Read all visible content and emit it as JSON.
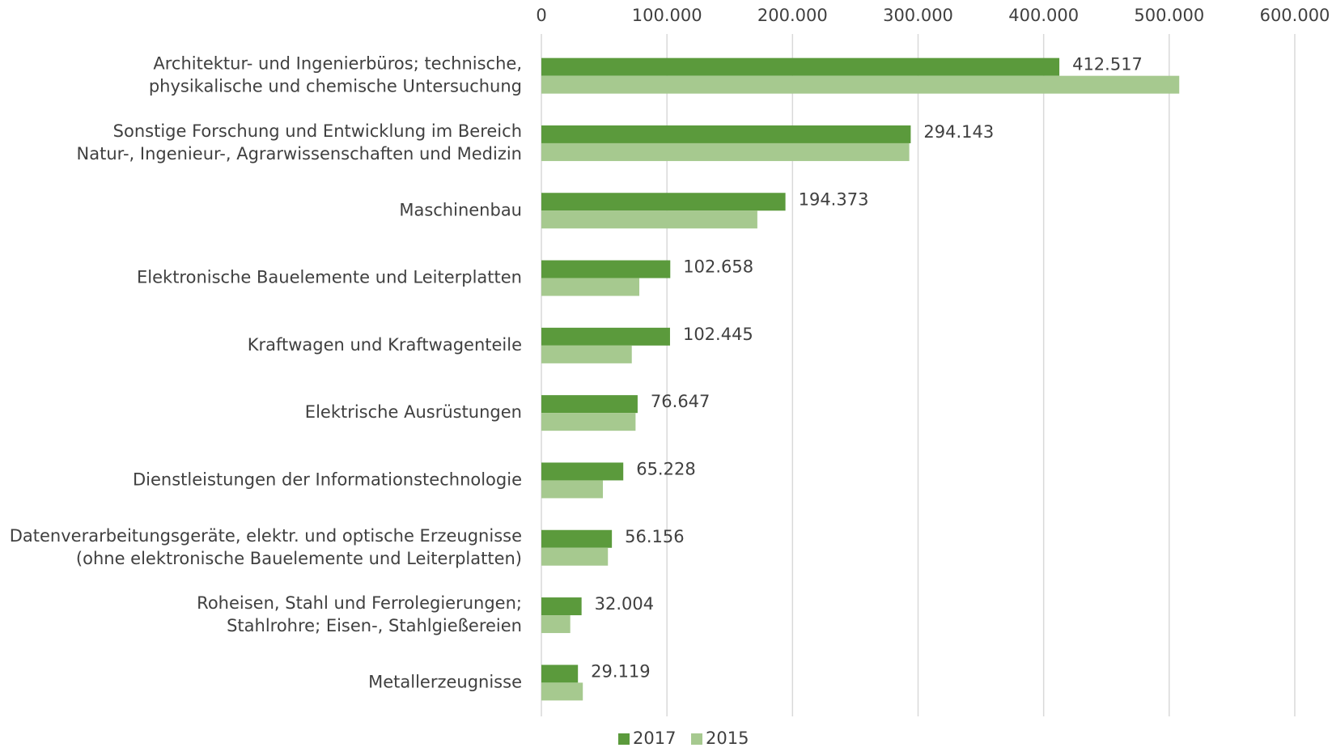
{
  "chart_data": {
    "type": "bar",
    "orientation": "horizontal",
    "categories": [
      "Architektur- und Ingenierbüros; technische,\nphysikalische und chemische Untersuchung",
      "Sonstige Forschung und Entwicklung im Bereich\nNatur-, Ingenieur-, Agrarwissenschaften und Medizin",
      "Maschinenbau",
      "Elektronische Bauelemente und Leiterplatten",
      "Kraftwagen und Kraftwagenteile",
      "Elektrische Ausrüstungen",
      "Dienstleistungen der Informationstechnologie",
      "Datenverarbeitungsgeräte, elektr. und optische Erzeugnisse\n(ohne elektronische Bauelemente und Leiterplatten)",
      "Roheisen, Stahl und Ferrolegierungen;\nStahlrohre; Eisen-, Stahlgießereien",
      "Metallerzeugnisse"
    ],
    "series": [
      {
        "name": "2017",
        "color": "#5b9a3c",
        "values": [
          412517,
          294143,
          194373,
          102658,
          102445,
          76647,
          65228,
          56156,
          32004,
          29119
        ],
        "value_labels": [
          "412.517",
          "294.143",
          "194.373",
          "102.658",
          "102.445",
          "76.647",
          "65.228",
          "56.156",
          "32.004",
          "29.119"
        ]
      },
      {
        "name": "2015",
        "color": "#a6c98f",
        "values": [
          508000,
          293000,
          172000,
          78000,
          72000,
          75000,
          49000,
          53000,
          23000,
          33000
        ]
      }
    ],
    "xlim": [
      0,
      600000
    ],
    "xticks": [
      0,
      {
        "value": 100000,
        "label": "100.000"
      },
      {
        "value": 200000,
        "label": "200.000"
      },
      {
        "value": 300000,
        "label": "300.000"
      },
      {
        "value": 400000,
        "label": "400.000"
      },
      {
        "value": 500000,
        "label": "500.000"
      },
      {
        "value": 600000,
        "label": "600.000"
      }
    ],
    "grid": true,
    "legend": "bottom"
  }
}
